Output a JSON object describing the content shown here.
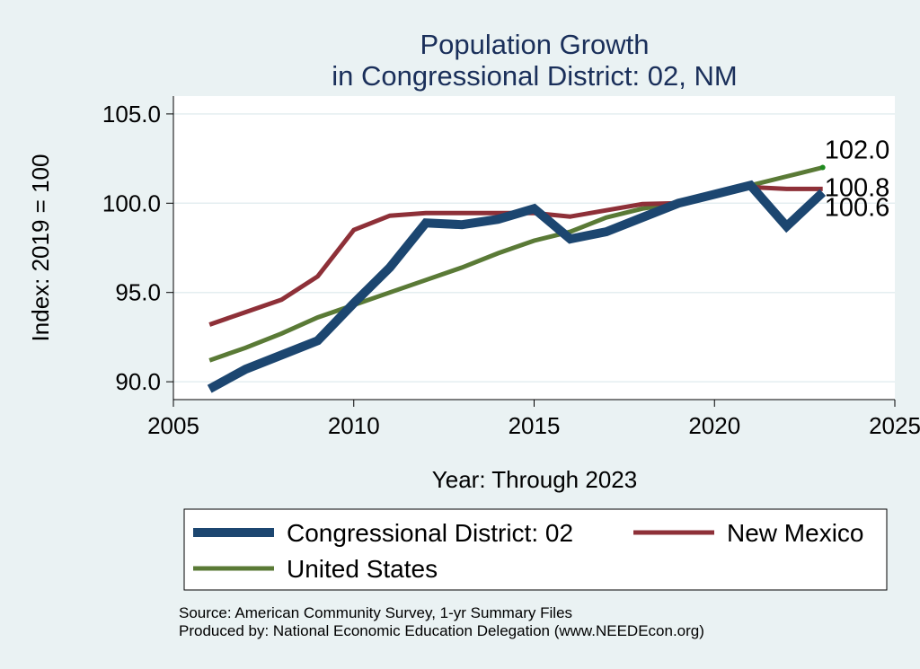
{
  "chart_data": {
    "type": "line",
    "title": [
      "Population Growth",
      "in Congressional District: 02, NM"
    ],
    "xlabel": "Year: Through 2023",
    "ylabel": "Index: 2019 = 100",
    "xlim": [
      2005,
      2025
    ],
    "ylim": [
      89,
      106
    ],
    "xticks": [
      2005,
      2010,
      2015,
      2020,
      2025
    ],
    "yticks": [
      90.0,
      95.0,
      100.0,
      105.0
    ],
    "ytick_labels": [
      "90.0",
      "95.0",
      "100.0",
      "105.0"
    ],
    "grid": true,
    "x": [
      2006,
      2007,
      2008,
      2009,
      2010,
      2011,
      2012,
      2013,
      2014,
      2015,
      2016,
      2017,
      2018,
      2019,
      2020,
      2021,
      2022,
      2023
    ],
    "series": [
      {
        "name": "Congressional District: 02",
        "color": "#1c4670",
        "values": [
          89.6,
          90.7,
          91.5,
          92.3,
          94.4,
          96.4,
          98.9,
          98.8,
          99.1,
          99.7,
          98.0,
          98.4,
          99.2,
          100.0,
          100.5,
          101.0,
          98.7,
          100.6
        ],
        "end_label": "100.6"
      },
      {
        "name": "New Mexico",
        "color": "#8e3038",
        "values": [
          93.2,
          93.9,
          94.6,
          95.9,
          98.5,
          99.3,
          99.45,
          99.45,
          99.45,
          99.45,
          99.25,
          99.6,
          99.95,
          100.0,
          100.4,
          100.9,
          100.8,
          100.8
        ],
        "end_label": "100.8"
      },
      {
        "name": "United States",
        "color": "#5a7a36",
        "values": [
          91.2,
          91.9,
          92.7,
          93.6,
          94.3,
          95.0,
          95.7,
          96.4,
          97.2,
          97.9,
          98.4,
          99.2,
          99.7,
          100.0,
          100.5,
          101.0,
          101.5,
          102.0
        ],
        "end_label": "102.0"
      }
    ],
    "legend": {
      "placement": "bottom",
      "entries": [
        "Congressional District: 02",
        "New Mexico",
        "United States"
      ]
    }
  },
  "source": {
    "line1": "Source: American Community Survey, 1-yr Summary Files",
    "line2": "Produced by: National Economic Education Delegation (www.NEEDEcon.org)"
  },
  "colors": {
    "background": "#eaf2f3",
    "plot_background": "#ffffff",
    "title": "#1a2f5a",
    "gridline": "#e4eef0"
  }
}
